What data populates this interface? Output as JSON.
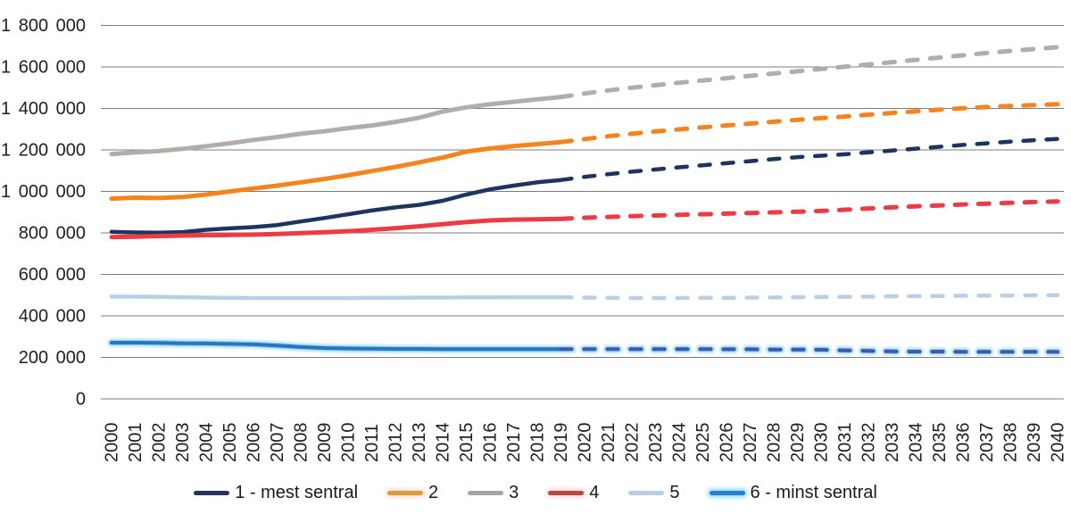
{
  "chart_data": {
    "type": "line",
    "title": "",
    "xlabel": "",
    "ylabel": "",
    "ylim": [
      0,
      1800000
    ],
    "y_tick_step": 200000,
    "grid": "horizontal-only",
    "legend_position": "bottom-center",
    "projection_start_year": 2019,
    "line_style_note": "solid 2000-2019 (registered), dashed 2019-2040 (projection)",
    "y_tick_labels": [
      "0",
      "200 000",
      "400 000",
      "600 000",
      "800 000",
      "1 000 000",
      "1 200 000",
      "1 400 000",
      "1 600 000",
      "1 800 000"
    ],
    "x": [
      2000,
      2001,
      2002,
      2003,
      2004,
      2005,
      2006,
      2007,
      2008,
      2009,
      2010,
      2011,
      2012,
      2013,
      2014,
      2015,
      2016,
      2017,
      2018,
      2019,
      2020,
      2021,
      2022,
      2023,
      2024,
      2025,
      2026,
      2027,
      2028,
      2029,
      2030,
      2031,
      2032,
      2033,
      2034,
      2035,
      2036,
      2037,
      2038,
      2039,
      2040
    ],
    "colors": {
      "text": "#1f1f1f",
      "gridline": "#7d7d7d",
      "background": "#ffffff"
    },
    "series": [
      {
        "name": "1 - mest sentral",
        "color": "#1d3360",
        "legend_color": "#24355d",
        "values": [
          805000,
          802000,
          801000,
          804000,
          815000,
          822000,
          828000,
          838000,
          855000,
          872000,
          890000,
          908000,
          923000,
          935000,
          955000,
          985000,
          1010000,
          1028000,
          1044000,
          1055000,
          1070000,
          1083000,
          1095000,
          1106000,
          1116000,
          1126000,
          1136000,
          1146000,
          1156000,
          1165000,
          1172000,
          1179000,
          1188000,
          1197000,
          1206000,
          1215000,
          1224000,
          1232000,
          1240000,
          1247000,
          1253000
        ]
      },
      {
        "name": "2",
        "color": "#f5841f",
        "legend_color": "#d8a02e",
        "legend_glow": "#ffd9e4",
        "values": [
          965000,
          970000,
          968000,
          973000,
          985000,
          1000000,
          1014000,
          1028000,
          1044000,
          1060000,
          1078000,
          1098000,
          1118000,
          1140000,
          1163000,
          1192000,
          1207000,
          1218000,
          1228000,
          1238000,
          1252000,
          1266000,
          1278000,
          1289000,
          1299000,
          1309000,
          1318000,
          1327000,
          1336000,
          1345000,
          1353000,
          1361000,
          1370000,
          1378000,
          1386000,
          1394000,
          1401000,
          1407000,
          1412000,
          1416000,
          1420000
        ]
      },
      {
        "name": "3",
        "color": "#b2ada7",
        "legend_color": "#a9a49e",
        "values": [
          1180000,
          1188000,
          1195000,
          1205000,
          1218000,
          1232000,
          1248000,
          1262000,
          1278000,
          1290000,
          1305000,
          1318000,
          1335000,
          1355000,
          1385000,
          1405000,
          1420000,
          1432000,
          1444000,
          1455000,
          1472000,
          1487000,
          1500000,
          1512000,
          1524000,
          1535000,
          1546000,
          1557000,
          1568000,
          1579000,
          1590000,
          1601000,
          1612000,
          1623000,
          1634000,
          1645000,
          1656000,
          1667000,
          1677000,
          1686000,
          1695000
        ]
      },
      {
        "name": "4",
        "color": "#ee3a44",
        "legend_color": "#b54a3f",
        "legend_glow": "#ffd9e4",
        "values": [
          780000,
          782000,
          785000,
          787000,
          789000,
          790000,
          792000,
          795000,
          799000,
          803000,
          808000,
          815000,
          823000,
          832000,
          842000,
          852000,
          860000,
          864000,
          866000,
          868000,
          873000,
          877000,
          881000,
          884000,
          887000,
          890000,
          893000,
          896000,
          899000,
          902000,
          906000,
          912000,
          918000,
          923000,
          928000,
          932000,
          937000,
          941000,
          945000,
          949000,
          952000
        ]
      },
      {
        "name": "5",
        "color": "#b9cfe6",
        "legend_color": "#b9cfe6",
        "values": [
          493000,
          493000,
          492000,
          490000,
          488000,
          487000,
          486000,
          486000,
          486000,
          486000,
          486000,
          487000,
          487000,
          488000,
          488000,
          489000,
          489000,
          490000,
          490000,
          490000,
          488000,
          487000,
          486000,
          486000,
          486000,
          487000,
          487000,
          488000,
          489000,
          490000,
          491000,
          492000,
          493000,
          494000,
          495000,
          496000,
          497000,
          498000,
          498000,
          499000,
          500000
        ]
      },
      {
        "name": "6 - minst sentral",
        "color": "#2c73c2",
        "dash_color": "#4356b0",
        "glow": [
          "#d5f1fc",
          "#8fd8f4"
        ],
        "legend_color": "#2d7dd1",
        "legend_glow": "#8ce0fb",
        "values": [
          271000,
          271000,
          270000,
          268000,
          267000,
          265000,
          263000,
          257000,
          250000,
          245000,
          243000,
          242000,
          241000,
          241000,
          240000,
          240000,
          240000,
          240000,
          240000,
          240000,
          240000,
          240000,
          240000,
          240000,
          240000,
          240000,
          239000,
          239000,
          238000,
          238000,
          237000,
          234000,
          231000,
          229000,
          228000,
          228000,
          227000,
          227000,
          227000,
          227000,
          227000
        ]
      }
    ]
  }
}
